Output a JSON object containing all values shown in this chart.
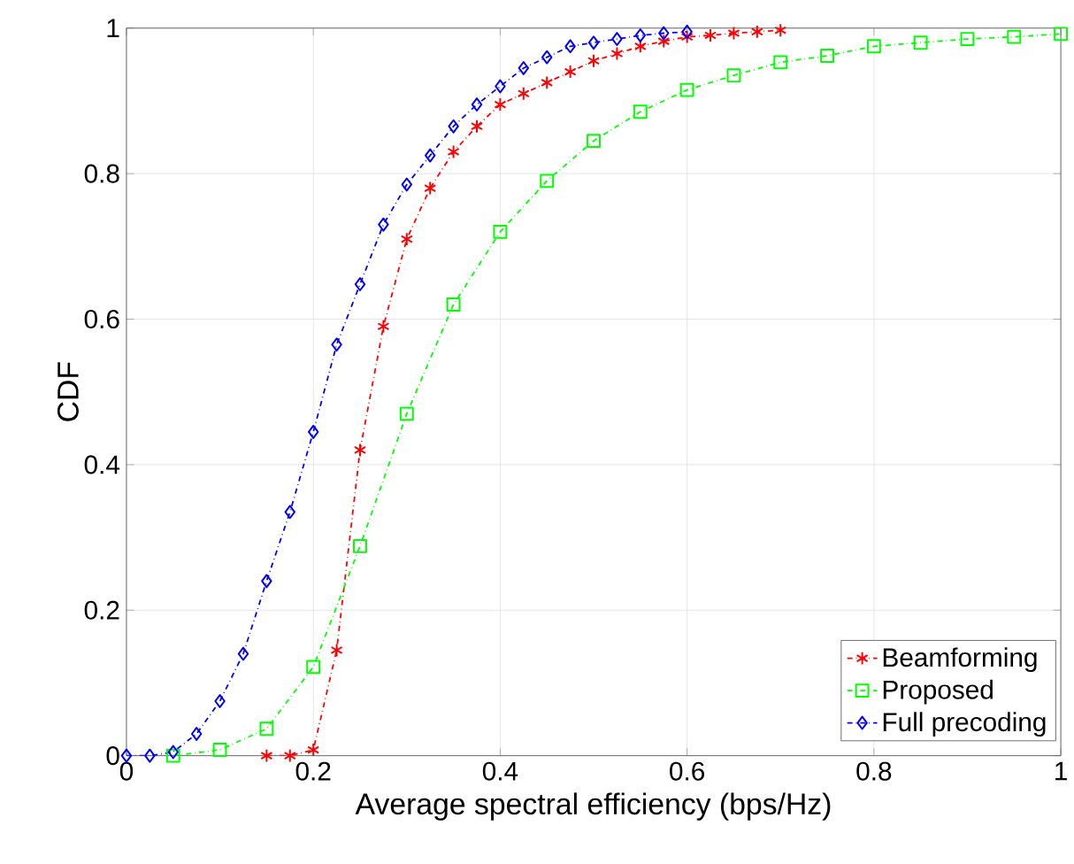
{
  "chart_data": {
    "type": "line",
    "xlabel": "Average spectral efficiency (bps/Hz)",
    "ylabel": "CDF",
    "xlim": [
      0,
      1
    ],
    "ylim": [
      0,
      1
    ],
    "xticks": [
      0,
      0.2,
      0.4,
      0.6,
      0.8,
      1
    ],
    "yticks": [
      0,
      0.2,
      0.4,
      0.6,
      0.8,
      1
    ],
    "grid": true,
    "legend": "bottom right",
    "line_style": "dashdot",
    "series": [
      {
        "name": "Beamforming",
        "color": "#ff0000",
        "marker": "cross",
        "x": [
          0.15,
          0.175,
          0.2,
          0.225,
          0.25,
          0.275,
          0.3,
          0.325,
          0.35,
          0.375,
          0.4,
          0.425,
          0.45,
          0.475,
          0.5,
          0.525,
          0.55,
          0.575,
          0.6,
          0.625,
          0.65,
          0.675,
          0.7
        ],
        "values": [
          0,
          0,
          0.008,
          0.145,
          0.42,
          0.59,
          0.71,
          0.78,
          0.83,
          0.865,
          0.895,
          0.91,
          0.925,
          0.94,
          0.955,
          0.965,
          0.975,
          0.982,
          0.988,
          0.99,
          0.993,
          0.995,
          0.997
        ]
      },
      {
        "name": "Proposed",
        "color": "#00ff00",
        "marker": "square",
        "x": [
          0.05,
          0.1,
          0.15,
          0.2,
          0.25,
          0.3,
          0.35,
          0.4,
          0.45,
          0.5,
          0.55,
          0.6,
          0.65,
          0.7,
          0.75,
          0.8,
          0.85,
          0.9,
          0.95,
          1.0
        ],
        "values": [
          0,
          0.008,
          0.037,
          0.122,
          0.288,
          0.47,
          0.62,
          0.72,
          0.79,
          0.845,
          0.885,
          0.915,
          0.935,
          0.953,
          0.962,
          0.975,
          0.98,
          0.985,
          0.988,
          0.992
        ]
      },
      {
        "name": "Full precoding",
        "color": "#0000ff",
        "marker": "diamond",
        "x": [
          0,
          0.025,
          0.05,
          0.075,
          0.1,
          0.125,
          0.15,
          0.175,
          0.2,
          0.225,
          0.25,
          0.275,
          0.3,
          0.325,
          0.35,
          0.375,
          0.4,
          0.425,
          0.45,
          0.475,
          0.5,
          0.525,
          0.55,
          0.575,
          0.6
        ],
        "values": [
          0,
          0,
          0.005,
          0.03,
          0.075,
          0.14,
          0.24,
          0.335,
          0.445,
          0.565,
          0.648,
          0.73,
          0.785,
          0.825,
          0.865,
          0.895,
          0.92,
          0.945,
          0.96,
          0.975,
          0.98,
          0.985,
          0.99,
          0.993,
          0.995
        ]
      }
    ]
  }
}
